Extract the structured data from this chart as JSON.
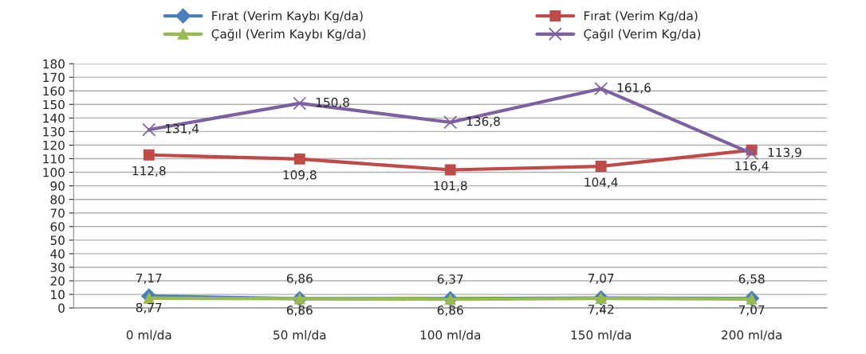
{
  "chart_data": {
    "type": "line",
    "categories": [
      "0 ml/da",
      "50 ml/da",
      "100 ml/da",
      "150 ml/da",
      "200 ml/da"
    ],
    "series": [
      {
        "name": "Fırat (Verim Kaybı Kg/da)",
        "color": "#4a7ebb",
        "marker": "diamond",
        "values": [
          8.77,
          6.86,
          6.86,
          7.42,
          7.07
        ],
        "value_labels": [
          "8,77",
          "6,86",
          "6,86",
          "7,42",
          "7,07"
        ]
      },
      {
        "name": "Fırat (Verim Kg/da)",
        "color": "#be4b48",
        "marker": "square",
        "values": [
          112.8,
          109.8,
          101.8,
          104.4,
          116.4
        ],
        "value_labels": [
          "112,8",
          "109,8",
          "101,8",
          "104,4",
          "116,4"
        ]
      },
      {
        "name": "Çağıl (Verim Kaybı Kg/da)",
        "color": "#98b954",
        "marker": "triangle",
        "values": [
          7.17,
          6.86,
          6.37,
          7.07,
          6.58
        ],
        "value_labels": [
          "7,17",
          "6,86",
          "6,37",
          "7,07",
          "6,58"
        ]
      },
      {
        "name": "Çağıl (Verim Kg/da)",
        "color": "#7d60a0",
        "marker": "cross",
        "values": [
          131.4,
          150.8,
          136.8,
          161.6,
          113.9
        ],
        "value_labels": [
          "131,4",
          "150,8",
          "136,8",
          "161,6",
          "113,9"
        ]
      }
    ],
    "ylim": [
      0,
      180
    ],
    "yticks": [
      0,
      10,
      20,
      30,
      40,
      50,
      60,
      70,
      80,
      90,
      100,
      110,
      120,
      130,
      140,
      150,
      160,
      170,
      180
    ],
    "grid": "y",
    "legend": "top"
  }
}
